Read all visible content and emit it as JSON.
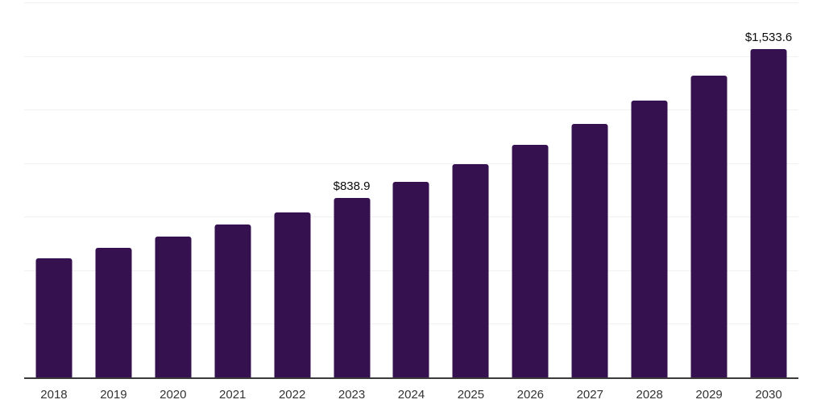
{
  "chart_data": {
    "type": "bar",
    "title": "",
    "xlabel": "",
    "ylabel": "",
    "categories": [
      "2018",
      "2019",
      "2020",
      "2021",
      "2022",
      "2023",
      "2024",
      "2025",
      "2026",
      "2027",
      "2028",
      "2029",
      "2030"
    ],
    "values": [
      556.0,
      606.4,
      656.2,
      715.0,
      768.9,
      838.9,
      914.4,
      996.7,
      1086.4,
      1184.2,
      1290.8,
      1407.0,
      1533.6
    ],
    "value_labels": [
      "",
      "",
      "",
      "",
      "",
      "$838.9",
      "",
      "",
      "",
      "",
      "",
      "",
      "$1,533.6"
    ],
    "ylim": [
      0,
      1750
    ],
    "gridline_step": 250,
    "grid": "horizontal-only",
    "y_tick_labels_visible": false,
    "legend": "none",
    "colors": {
      "bar": "#351150",
      "gridline": "#F1F1F3",
      "axis_line": "#3A3A3A",
      "value_label_text": "#0A0A0A",
      "tick_label_text": "#333333",
      "background": "#FFFFFF"
    }
  }
}
